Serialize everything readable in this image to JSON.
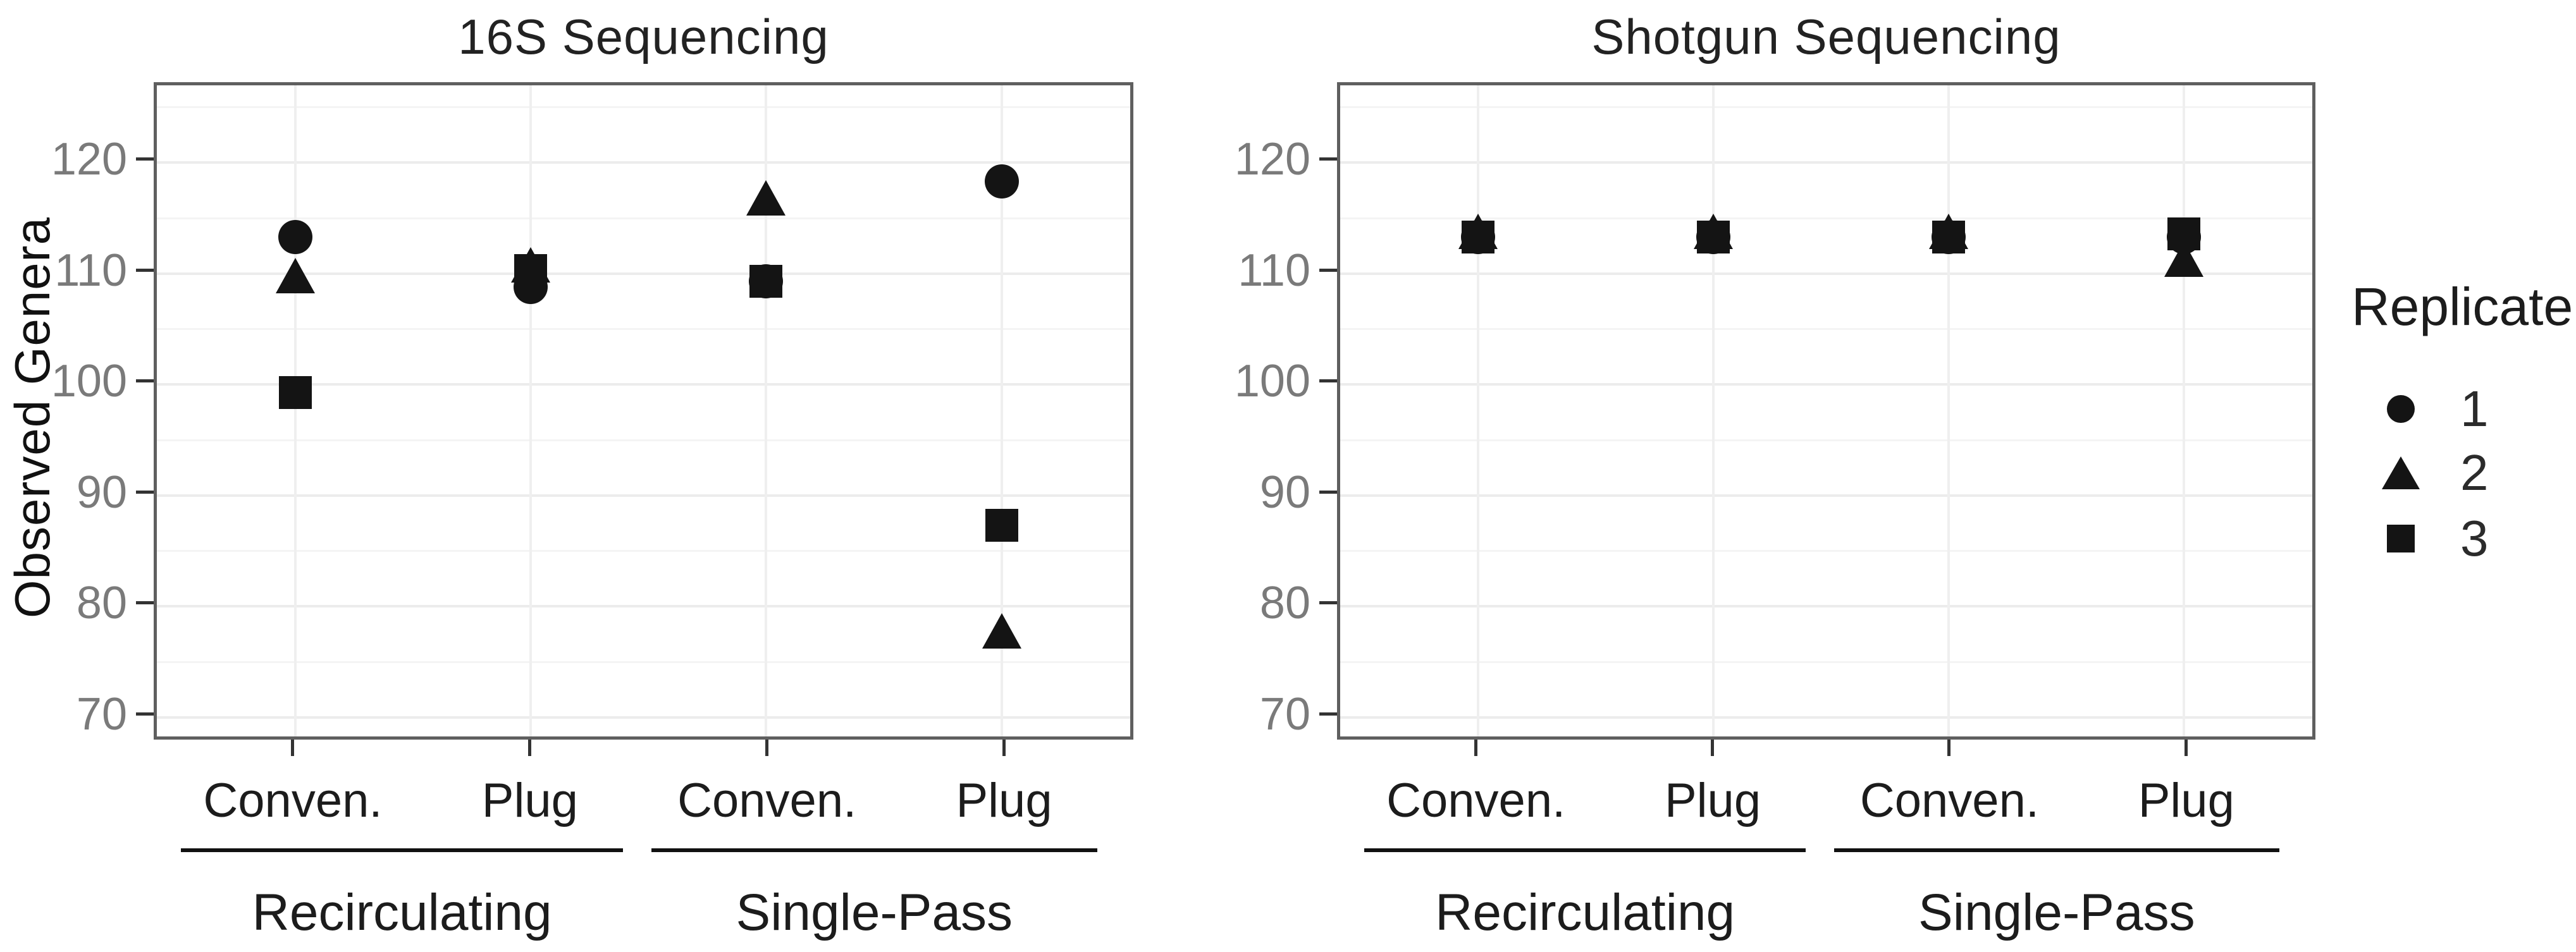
{
  "chart_data": {
    "type": "scatter",
    "ylabel": "Observed Genera",
    "ylim": [
      67.7,
      127
    ],
    "yticks": [
      70,
      80,
      90,
      100,
      110,
      120
    ],
    "minor_yticks": [
      75,
      85,
      95,
      105,
      115,
      125
    ],
    "grid": "on",
    "x_structure": {
      "treatments": [
        "Conven.",
        "Plug"
      ],
      "groups": [
        "Recirculating",
        "Single-Pass"
      ]
    },
    "legend": {
      "title": "Replicate",
      "position": "right",
      "entries": [
        {
          "label": "1",
          "marker": "circle"
        },
        {
          "label": "2",
          "marker": "triangle"
        },
        {
          "label": "3",
          "marker": "square"
        }
      ]
    },
    "panels": [
      {
        "title": "16S Sequencing",
        "points": [
          {
            "group": "Recirculating",
            "treatment": "Conven.",
            "replicate": "1",
            "marker": "circle",
            "value": 113
          },
          {
            "group": "Recirculating",
            "treatment": "Conven.",
            "replicate": "2",
            "marker": "triangle",
            "value": 109.5
          },
          {
            "group": "Recirculating",
            "treatment": "Conven.",
            "replicate": "3",
            "marker": "square",
            "value": 99
          },
          {
            "group": "Recirculating",
            "treatment": "Plug",
            "replicate": "1",
            "marker": "circle",
            "value": 108.5
          },
          {
            "group": "Recirculating",
            "treatment": "Plug",
            "replicate": "2",
            "marker": "triangle",
            "value": 110.5
          },
          {
            "group": "Recirculating",
            "treatment": "Plug",
            "replicate": "3",
            "marker": "square",
            "value": 110
          },
          {
            "group": "Single-Pass",
            "treatment": "Conven.",
            "replicate": "1",
            "marker": "circle",
            "value": 109
          },
          {
            "group": "Single-Pass",
            "treatment": "Conven.",
            "replicate": "2",
            "marker": "triangle",
            "value": 116.5
          },
          {
            "group": "Single-Pass",
            "treatment": "Conven.",
            "replicate": "3",
            "marker": "square",
            "value": 109
          },
          {
            "group": "Single-Pass",
            "treatment": "Plug",
            "replicate": "1",
            "marker": "circle",
            "value": 118
          },
          {
            "group": "Single-Pass",
            "treatment": "Plug",
            "replicate": "2",
            "marker": "triangle",
            "value": 77.5
          },
          {
            "group": "Single-Pass",
            "treatment": "Plug",
            "replicate": "3",
            "marker": "square",
            "value": 87
          }
        ]
      },
      {
        "title": "Shotgun Sequencing",
        "points": [
          {
            "group": "Recirculating",
            "treatment": "Conven.",
            "replicate": "1",
            "marker": "circle",
            "value": 113
          },
          {
            "group": "Recirculating",
            "treatment": "Conven.",
            "replicate": "2",
            "marker": "triangle",
            "value": 113.5
          },
          {
            "group": "Recirculating",
            "treatment": "Conven.",
            "replicate": "3",
            "marker": "square",
            "value": 113
          },
          {
            "group": "Recirculating",
            "treatment": "Plug",
            "replicate": "1",
            "marker": "circle",
            "value": 113
          },
          {
            "group": "Recirculating",
            "treatment": "Plug",
            "replicate": "2",
            "marker": "triangle",
            "value": 113.5
          },
          {
            "group": "Recirculating",
            "treatment": "Plug",
            "replicate": "3",
            "marker": "square",
            "value": 113
          },
          {
            "group": "Single-Pass",
            "treatment": "Conven.",
            "replicate": "1",
            "marker": "circle",
            "value": 113
          },
          {
            "group": "Single-Pass",
            "treatment": "Conven.",
            "replicate": "2",
            "marker": "triangle",
            "value": 113.5
          },
          {
            "group": "Single-Pass",
            "treatment": "Conven.",
            "replicate": "3",
            "marker": "square",
            "value": 113
          },
          {
            "group": "Single-Pass",
            "treatment": "Plug",
            "replicate": "1",
            "marker": "circle",
            "value": 113
          },
          {
            "group": "Single-Pass",
            "treatment": "Plug",
            "replicate": "2",
            "marker": "triangle",
            "value": 111
          },
          {
            "group": "Single-Pass",
            "treatment": "Plug",
            "replicate": "3",
            "marker": "square",
            "value": 113.3
          }
        ]
      }
    ]
  }
}
